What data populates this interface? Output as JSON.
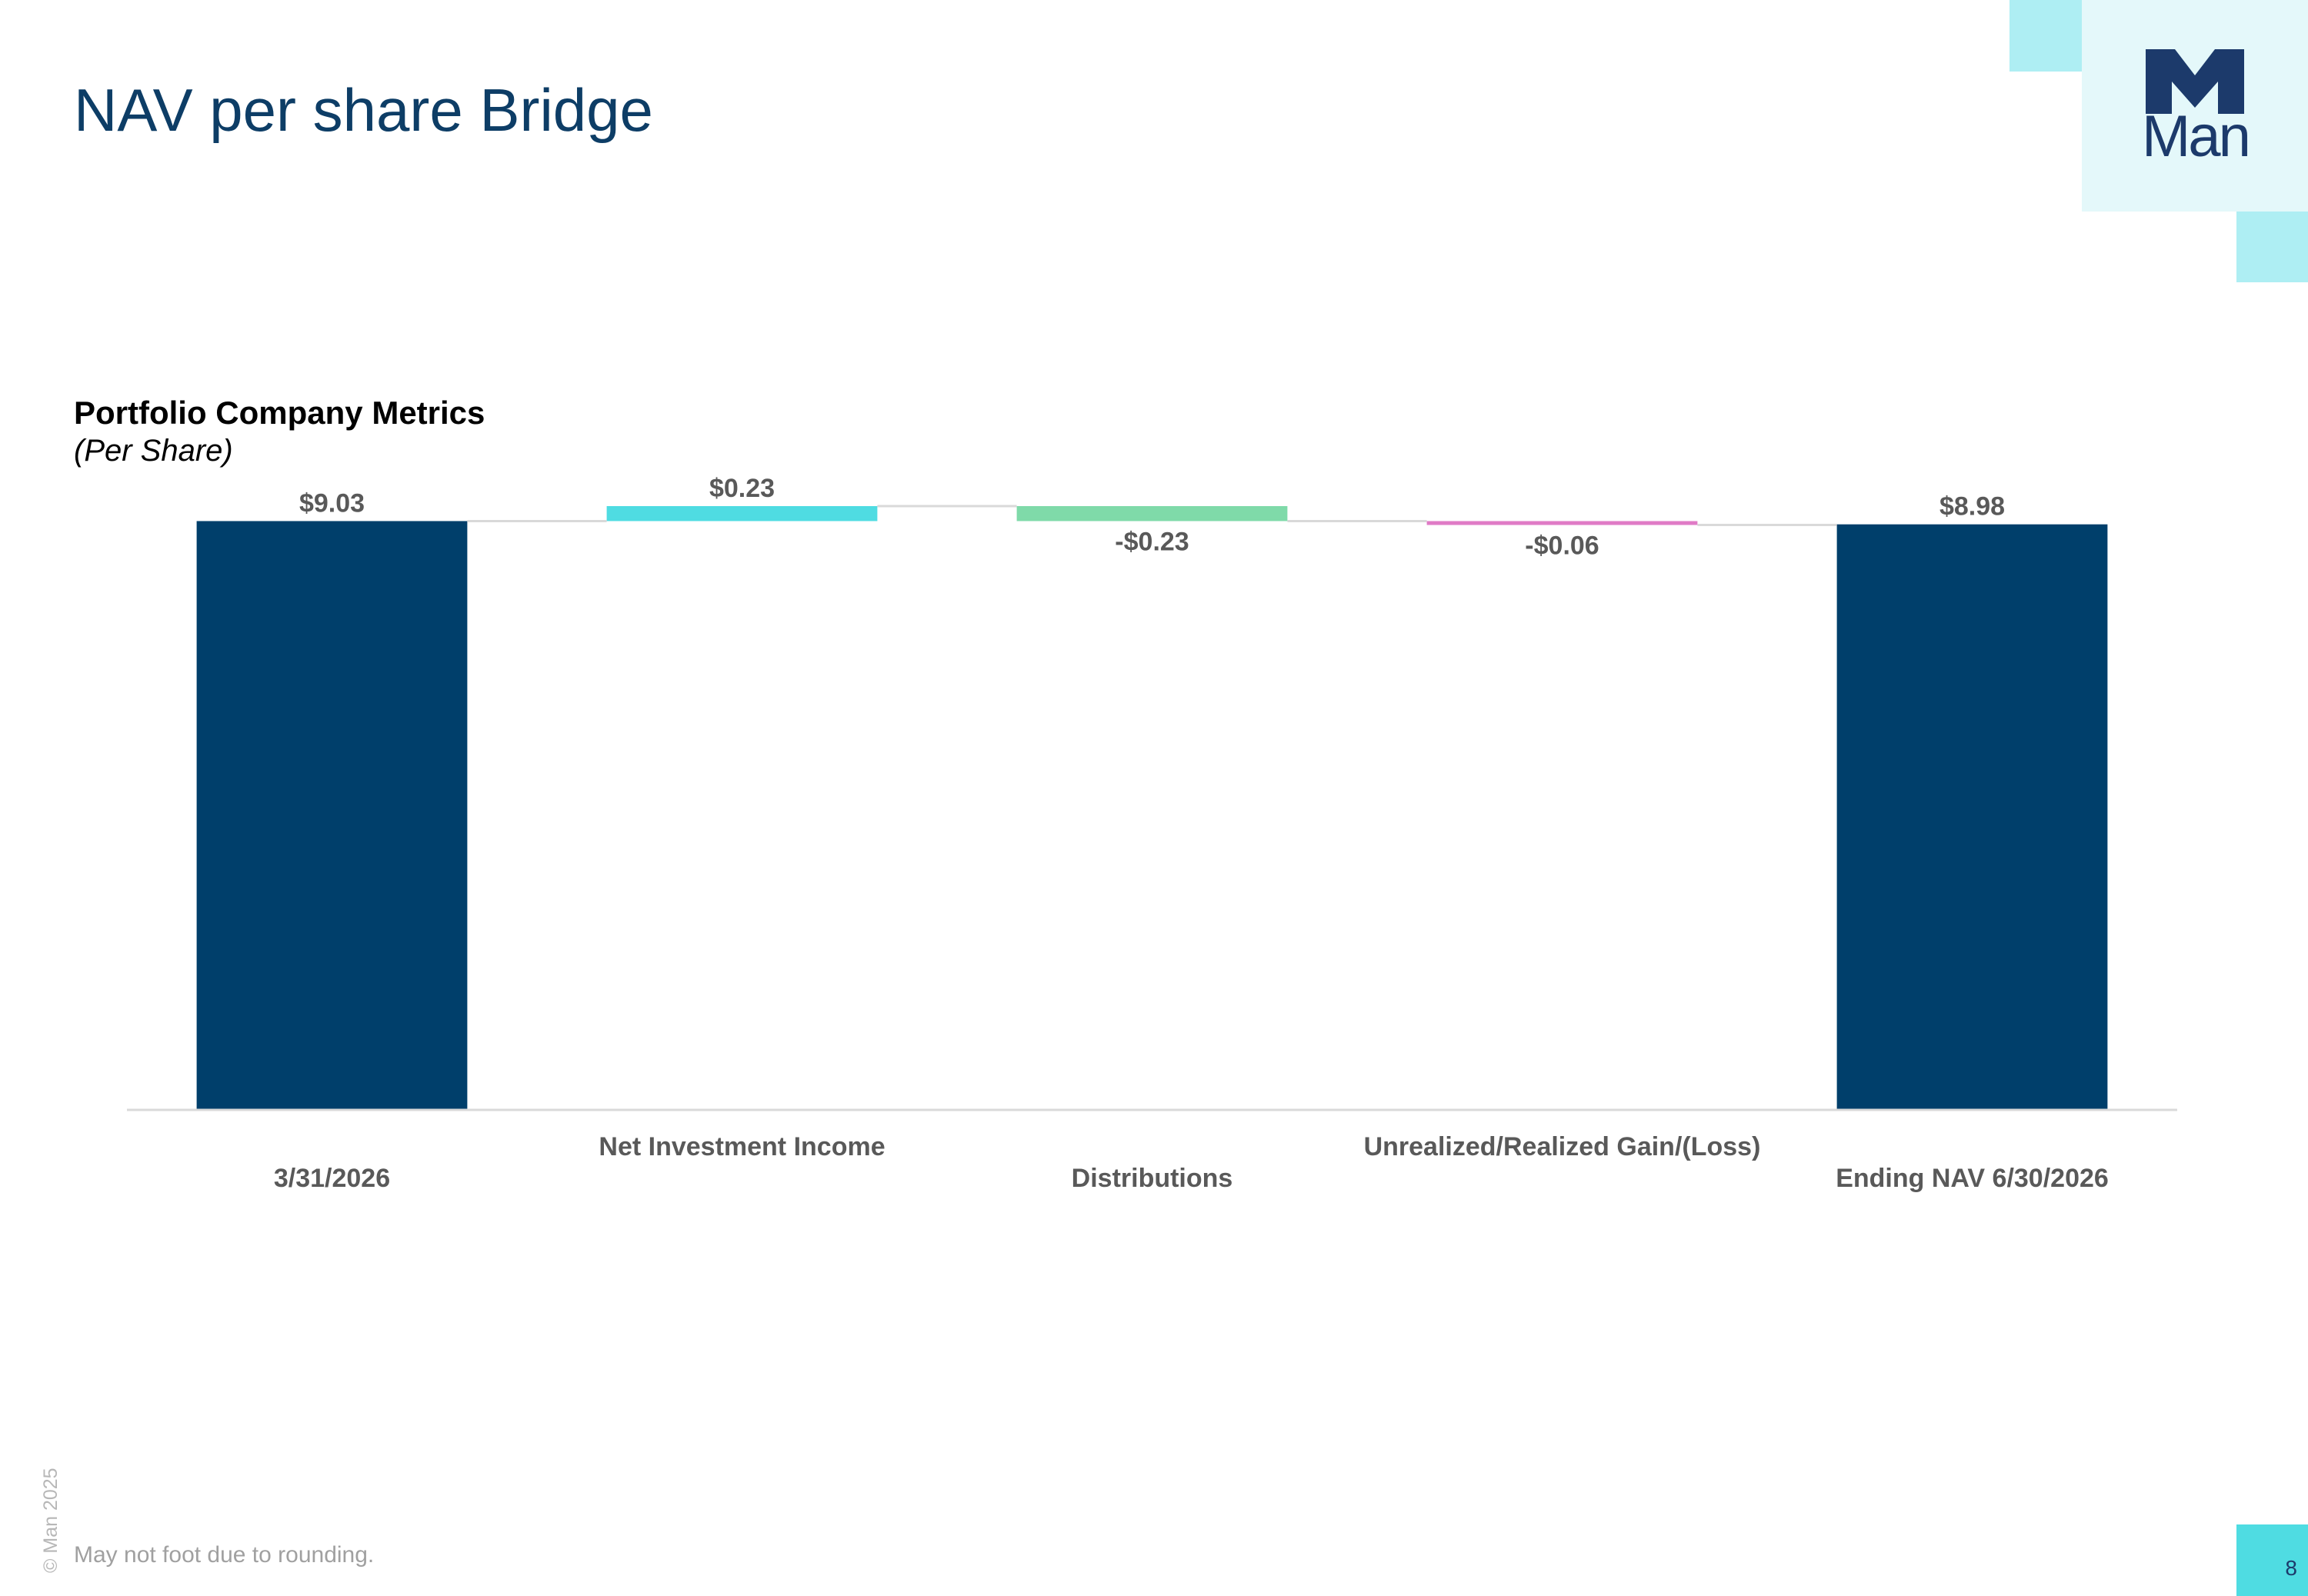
{
  "page": {
    "title": "NAV per share Bridge",
    "footnote": "May not foot due to rounding.",
    "copyright": "© Man 2025",
    "page_number": "8"
  },
  "logo": {
    "text": "Man",
    "color": "#1c3a6b"
  },
  "chart": {
    "title": "Portfolio Company Metrics",
    "subtitle": "(Per Share)"
  },
  "chart_data": {
    "type": "bar",
    "subtype": "waterfall",
    "title": "Portfolio Company Metrics",
    "subtitle": "(Per Share)",
    "categories": [
      "3/31/2026",
      "Net Investment Income",
      "Distributions",
      "Unrealized/Realized Gain/(Loss)",
      "Ending NAV 6/30/2026"
    ],
    "values": [
      9.03,
      0.23,
      -0.23,
      -0.06,
      8.98
    ],
    "kinds": [
      "total",
      "delta",
      "delta",
      "delta",
      "total"
    ],
    "data_labels": [
      "$9.03",
      "$0.23",
      "-$0.23",
      "-$0.06",
      "$8.98"
    ],
    "colors": [
      "#003f6b",
      "#4fdce2",
      "#7fdaa9",
      "#e07bc6",
      "#003f6b"
    ],
    "connector_color": "#d9d9d9",
    "ylim": [
      0,
      9.26
    ],
    "grid": false,
    "legend": "none",
    "xlabel": "",
    "ylabel": ""
  }
}
